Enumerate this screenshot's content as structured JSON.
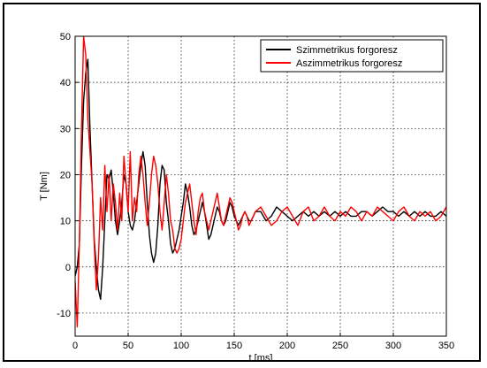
{
  "chart_data": {
    "type": "line",
    "title": "",
    "xlabel": "t [ms]",
    "ylabel": "T [Nm]",
    "xlim": [
      0,
      350
    ],
    "ylim": [
      -15,
      50
    ],
    "xticks": [
      0,
      50,
      100,
      150,
      200,
      250,
      300,
      350
    ],
    "yticks": [
      -10,
      0,
      10,
      20,
      30,
      40,
      50
    ],
    "xtick_labels": [
      "0",
      "50",
      "100",
      "150",
      "200",
      "250",
      "300",
      "350"
    ],
    "ytick_labels": [
      "-10",
      "0",
      "10",
      "20",
      "30",
      "40",
      "50"
    ],
    "grid": true,
    "grid_style": "dotted",
    "legend_position": "top-right",
    "series": [
      {
        "name": "Szimmetrikus forgoresz",
        "color": "#000000",
        "x": [
          0,
          2,
          4,
          6,
          8,
          10,
          12,
          14,
          16,
          18,
          20,
          22,
          24,
          26,
          28,
          30,
          32,
          34,
          36,
          38,
          40,
          42,
          44,
          46,
          48,
          50,
          52,
          54,
          56,
          58,
          60,
          62,
          64,
          66,
          68,
          70,
          72,
          74,
          76,
          78,
          80,
          82,
          84,
          86,
          88,
          90,
          92,
          94,
          96,
          98,
          100,
          102,
          104,
          106,
          108,
          110,
          112,
          114,
          116,
          118,
          120,
          122,
          124,
          126,
          128,
          130,
          132,
          134,
          136,
          138,
          140,
          142,
          144,
          146,
          148,
          150,
          152,
          154,
          156,
          158,
          160,
          162,
          164,
          166,
          168,
          170,
          175,
          180,
          185,
          190,
          195,
          200,
          205,
          210,
          215,
          220,
          225,
          230,
          235,
          240,
          245,
          250,
          255,
          260,
          265,
          270,
          275,
          280,
          285,
          290,
          295,
          300,
          305,
          310,
          315,
          320,
          325,
          330,
          335,
          340,
          345,
          350
        ],
        "values": [
          -2,
          0,
          5,
          22,
          36,
          42,
          45,
          30,
          18,
          6,
          0,
          -5,
          -7,
          0,
          10,
          20,
          19,
          21,
          16,
          10,
          7,
          10,
          14,
          20,
          18,
          12,
          9,
          8,
          10,
          14,
          18,
          22,
          25,
          22,
          14,
          7,
          3,
          1,
          3,
          9,
          18,
          22,
          21,
          14,
          10,
          5,
          3,
          4,
          6,
          8,
          11,
          14,
          18,
          16,
          13,
          9,
          7,
          8,
          10,
          12,
          14,
          12,
          9,
          6,
          7,
          9,
          11,
          13,
          12,
          10,
          9,
          10,
          12,
          14,
          13,
          11,
          10,
          9,
          10,
          11,
          12,
          11,
          10,
          10,
          11,
          12,
          12,
          10,
          11,
          13,
          12,
          11,
          10,
          11,
          12,
          11,
          12,
          11,
          12,
          11,
          12,
          11,
          12,
          11,
          11,
          12,
          12,
          11,
          12,
          13,
          12,
          12,
          11,
          12,
          11,
          12,
          11,
          12,
          11,
          11,
          12,
          11
        ]
      },
      {
        "name": "Aszimmetrikus forgoresz",
        "color": "#ff0000",
        "x": [
          0,
          2,
          4,
          6,
          8,
          10,
          12,
          14,
          16,
          18,
          20,
          22,
          24,
          26,
          28,
          30,
          32,
          34,
          36,
          38,
          40,
          42,
          44,
          46,
          48,
          50,
          52,
          54,
          56,
          58,
          60,
          62,
          64,
          66,
          68,
          70,
          72,
          74,
          76,
          78,
          80,
          82,
          84,
          86,
          88,
          90,
          92,
          94,
          96,
          98,
          100,
          102,
          104,
          106,
          108,
          110,
          112,
          114,
          116,
          118,
          120,
          122,
          124,
          126,
          128,
          130,
          132,
          134,
          136,
          138,
          140,
          142,
          144,
          146,
          148,
          150,
          152,
          154,
          156,
          158,
          160,
          162,
          164,
          166,
          168,
          170,
          175,
          180,
          185,
          190,
          195,
          200,
          205,
          210,
          215,
          220,
          225,
          230,
          235,
          240,
          245,
          250,
          255,
          260,
          265,
          270,
          275,
          280,
          285,
          290,
          295,
          300,
          305,
          310,
          315,
          320,
          325,
          330,
          335,
          340,
          345,
          350
        ],
        "values": [
          -3,
          -13,
          5,
          30,
          50,
          46,
          32,
          25,
          18,
          5,
          -5,
          2,
          15,
          8,
          22,
          12,
          20,
          10,
          18,
          14,
          8,
          16,
          10,
          24,
          18,
          12,
          25,
          10,
          15,
          12,
          20,
          24,
          20,
          14,
          9,
          14,
          20,
          24,
          22,
          18,
          12,
          8,
          14,
          20,
          16,
          10,
          8,
          4,
          3,
          4,
          6,
          10,
          14,
          16,
          18,
          14,
          10,
          7,
          12,
          15,
          16,
          12,
          10,
          8,
          10,
          12,
          14,
          16,
          13,
          10,
          9,
          11,
          13,
          15,
          14,
          12,
          10,
          8,
          9,
          11,
          12,
          11,
          9,
          10,
          11,
          12,
          13,
          11,
          9,
          10,
          12,
          13,
          11,
          9,
          12,
          13,
          10,
          11,
          13,
          11,
          10,
          12,
          11,
          13,
          12,
          10,
          12,
          11,
          13,
          12,
          11,
          10,
          12,
          13,
          11,
          10,
          12,
          11,
          12,
          10,
          11,
          13
        ]
      }
    ]
  }
}
